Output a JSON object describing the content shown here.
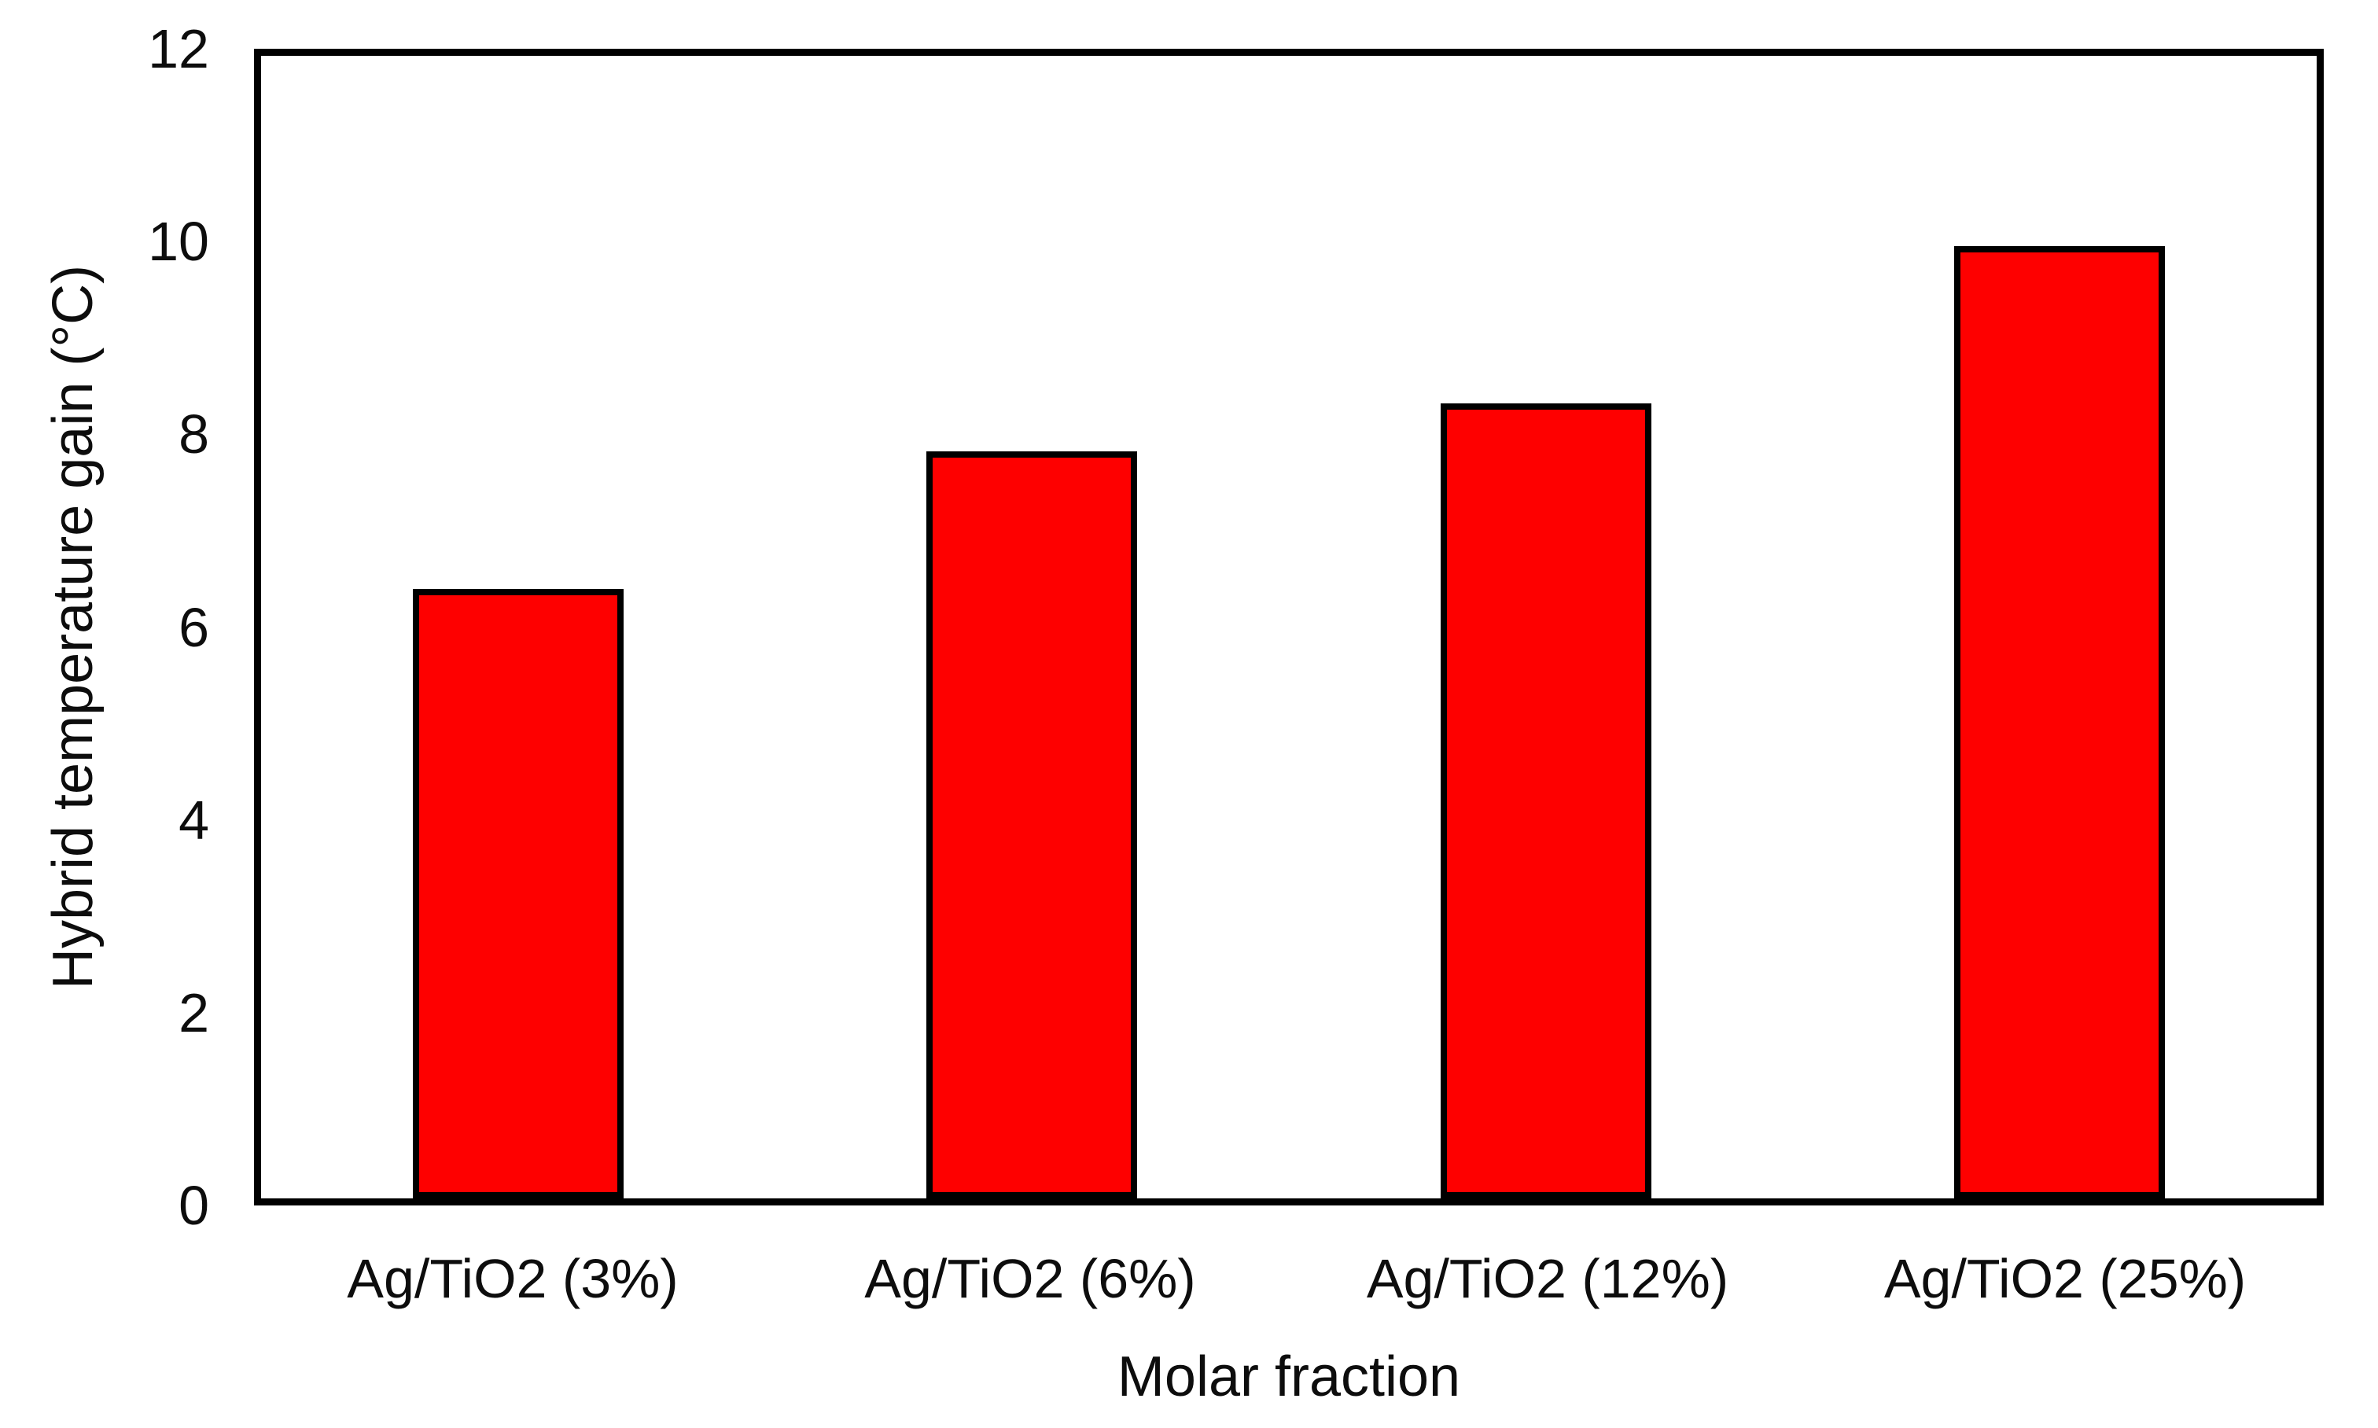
{
  "chart_data": {
    "type": "bar",
    "title": "",
    "xlabel": "Molar fraction",
    "ylabel": "Hybrid temperature gain (°C)",
    "categories": [
      "Ag/TiO2 (3%)",
      "Ag/TiO2 (6%)",
      "Ag/TiO2 (12%)",
      "Ag/TiO2 (25%)"
    ],
    "values": [
      6.4,
      7.85,
      8.35,
      10
    ],
    "ylim": [
      0,
      12
    ],
    "yticks": [
      "0",
      "2",
      "4",
      "6",
      "8",
      "10",
      "12"
    ],
    "grid": false,
    "legend": false,
    "bar_fill_color": "#fe0000",
    "bar_border_color": "#000000",
    "plot_border_color": "#000000",
    "text_color": "#0d0d0d",
    "background_color": "#ffffff"
  }
}
